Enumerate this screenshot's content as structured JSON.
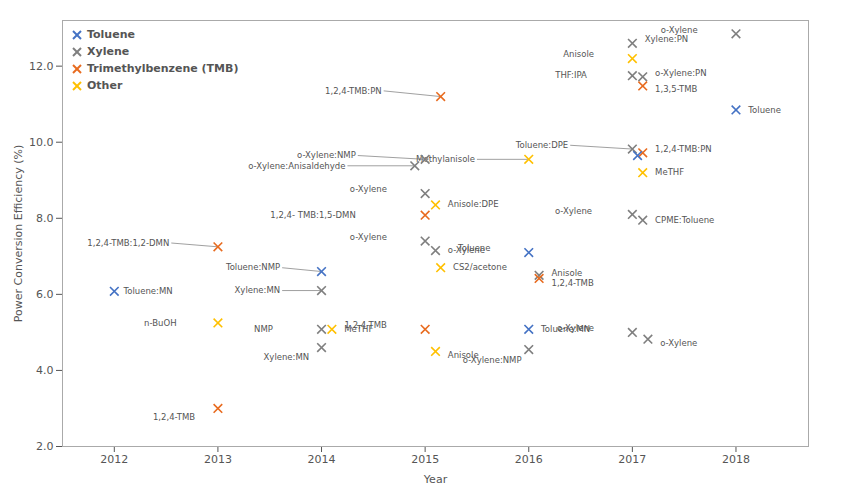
{
  "chart_data": {
    "type": "scatter",
    "xlabel": "Year",
    "ylabel": "Power Conversion Efficiency (%)",
    "xlim": [
      2011.5,
      2018.7
    ],
    "ylim": [
      2.0,
      13.2
    ],
    "xticks": [
      2012,
      2013,
      2014,
      2015,
      2016,
      2017,
      2018
    ],
    "yticks": [
      {
        "value": 2.0,
        "label": "2.0"
      },
      {
        "value": 4.0,
        "label": "4.0"
      },
      {
        "value": 6.0,
        "label": "6.0"
      },
      {
        "value": 8.0,
        "label": "8.0"
      },
      {
        "value": 10.0,
        "label": "10.0"
      },
      {
        "value": 12.0,
        "label": "12.0"
      }
    ],
    "grid": false,
    "legend": "upper left",
    "marker": "x",
    "series": [
      {
        "name": "Toluene",
        "color": "#4472C4"
      },
      {
        "name": "Xylene",
        "color": "#7F7F7F"
      },
      {
        "name": "Trimethylbenzene (TMB)",
        "color": "#E86B1F"
      },
      {
        "name": "Other",
        "color": "#FFC000"
      }
    ],
    "points": [
      {
        "x": 2012.0,
        "y": 6.08,
        "series": "Toluene",
        "label": "Toluene:MN",
        "label_x": 2012.07,
        "label_y": 6.08,
        "arrow": false
      },
      {
        "x": 2013.0,
        "y": 7.25,
        "series": "Trimethylbenzene (TMB)",
        "label": "1,2,4-TMB:1,2-DMN",
        "label_x": 2012.55,
        "label_y": 7.35,
        "arrow": true
      },
      {
        "x": 2013.0,
        "y": 5.25,
        "series": "Other",
        "label": "n-BuOH",
        "label_x": 2012.62,
        "label_y": 5.25,
        "arrow": false
      },
      {
        "x": 2013.0,
        "y": 3.0,
        "series": "Trimethylbenzene (TMB)",
        "label": "1,2,4-TMB",
        "label_x": 2012.8,
        "label_y": 2.78,
        "arrow": false
      },
      {
        "x": 2014.0,
        "y": 6.1,
        "series": "Xylene",
        "label": "Xylene:MN",
        "label_x": 2013.62,
        "label_y": 6.1,
        "arrow": true
      },
      {
        "x": 2014.0,
        "y": 6.6,
        "series": "Toluene",
        "label": "Toluene:NMP",
        "label_x": 2013.62,
        "label_y": 6.7,
        "arrow": true
      },
      {
        "x": 2014.0,
        "y": 5.08,
        "series": "Xylene",
        "label": "NMP",
        "label_x": 2013.55,
        "label_y": 5.08,
        "arrow": false
      },
      {
        "x": 2014.1,
        "y": 5.08,
        "series": "Other",
        "label": "MeTHF",
        "label_x": 2014.2,
        "label_y": 5.08,
        "arrow": false
      },
      {
        "x": 2014.0,
        "y": 4.6,
        "series": "Xylene",
        "label": "Xylene:MN",
        "label_x": 2013.9,
        "label_y": 4.35,
        "arrow": false
      },
      {
        "x": 2015.0,
        "y": 9.55,
        "series": "Xylene",
        "label": "o-Xylene:NMP",
        "label_x": 2014.35,
        "label_y": 9.65,
        "arrow": true
      },
      {
        "x": 2014.9,
        "y": 9.38,
        "series": "Xylene",
        "label": "o-Xylene:Anisaldehyde",
        "label_x": 2014.25,
        "label_y": 9.38,
        "arrow": true
      },
      {
        "x": 2015.0,
        "y": 8.65,
        "series": "Xylene",
        "label": "o-Xylene",
        "label_x": 2014.65,
        "label_y": 8.75,
        "arrow": false
      },
      {
        "x": 2015.0,
        "y": 8.08,
        "series": "Trimethylbenzene (TMB)",
        "label": "1,2,4- TMB:1,5-DMN",
        "label_x": 2014.35,
        "label_y": 8.08,
        "arrow": false
      },
      {
        "x": 2015.1,
        "y": 8.35,
        "series": "Other",
        "label": "Anisole:DPE",
        "label_x": 2015.2,
        "label_y": 8.38,
        "arrow": false
      },
      {
        "x": 2015.0,
        "y": 7.4,
        "series": "Xylene",
        "label": "o-Xylene",
        "label_x": 2014.65,
        "label_y": 7.5,
        "arrow": false
      },
      {
        "x": 2015.1,
        "y": 7.15,
        "series": "Xylene",
        "label": "o-Xylene",
        "label_x": 2015.2,
        "label_y": 7.15,
        "arrow": false
      },
      {
        "x": 2015.15,
        "y": 6.7,
        "series": "Other",
        "label": "CS2/acetone",
        "label_x": 2015.25,
        "label_y": 6.7,
        "arrow": false
      },
      {
        "x": 2015.0,
        "y": 5.08,
        "series": "Trimethylbenzene (TMB)",
        "label": "1,2,4-TMB",
        "label_x": 2014.65,
        "label_y": 5.18,
        "arrow": false
      },
      {
        "x": 2015.1,
        "y": 4.5,
        "series": "Other",
        "label": "Anisole",
        "label_x": 2015.2,
        "label_y": 4.4,
        "arrow": false
      },
      {
        "x": 2015.15,
        "y": 11.2,
        "series": "Trimethylbenzene (TMB)",
        "label": "1,2,4-TMB:PN",
        "label_x": 2014.6,
        "label_y": 11.35,
        "arrow": true
      },
      {
        "x": 2016.0,
        "y": 9.55,
        "series": "Other",
        "label": "Methylanisole",
        "label_x": 2015.5,
        "label_y": 9.55,
        "arrow": true
      },
      {
        "x": 2016.0,
        "y": 7.1,
        "series": "Toluene",
        "label": "Toluene",
        "label_x": 2015.65,
        "label_y": 7.2,
        "arrow": false
      },
      {
        "x": 2016.1,
        "y": 6.5,
        "series": "Xylene",
        "label": "Anisole",
        "label_x": 2016.2,
        "label_y": 6.55,
        "arrow": false
      },
      {
        "x": 2016.1,
        "y": 6.42,
        "series": "Trimethylbenzene (TMB)",
        "label": "1,2,4-TMB",
        "label_x": 2016.2,
        "label_y": 6.28,
        "arrow": false
      },
      {
        "x": 2016.0,
        "y": 5.08,
        "series": "Toluene",
        "label": "Toluene:MN",
        "label_x": 2016.1,
        "label_y": 5.08,
        "arrow": false
      },
      {
        "x": 2016.0,
        "y": 4.55,
        "series": "Xylene",
        "label": "o-Xylene:NMP",
        "label_x": 2015.95,
        "label_y": 4.28,
        "arrow": false
      },
      {
        "x": 2017.0,
        "y": 12.6,
        "series": "Xylene",
        "label": "Xylene:PN",
        "label_x": 2017.1,
        "label_y": 12.7,
        "arrow": false
      },
      {
        "x": 2017.0,
        "y": 12.2,
        "series": "Other",
        "label": "Anisole",
        "label_x": 2016.65,
        "label_y": 12.3,
        "arrow": false
      },
      {
        "x": 2017.0,
        "y": 11.75,
        "series": "Xylene",
        "label": "THF:IPA",
        "label_x": 2016.58,
        "label_y": 11.75,
        "arrow": false
      },
      {
        "x": 2017.1,
        "y": 11.72,
        "series": "Xylene",
        "label": "o-Xylene:PN",
        "label_x": 2017.2,
        "label_y": 11.8,
        "arrow": false
      },
      {
        "x": 2017.1,
        "y": 11.48,
        "series": "Trimethylbenzene (TMB)",
        "label": "1,3,5-TMB",
        "label_x": 2017.2,
        "label_y": 11.38,
        "arrow": false
      },
      {
        "x": 2017.0,
        "y": 9.82,
        "series": "Xylene",
        "label": "Toluene:DPE",
        "label_x": 2016.4,
        "label_y": 9.92,
        "arrow": true
      },
      {
        "x": 2017.1,
        "y": 9.72,
        "series": "Trimethylbenzene (TMB)",
        "label": "1,2,4-TMB:PN",
        "label_x": 2017.2,
        "label_y": 9.82,
        "arrow": false
      },
      {
        "x": 2017.05,
        "y": 9.65,
        "series": "Toluene"
      },
      {
        "x": 2017.1,
        "y": 9.2,
        "series": "Other",
        "label": "MeTHF",
        "label_x": 2017.2,
        "label_y": 9.2,
        "arrow": false
      },
      {
        "x": 2017.0,
        "y": 8.1,
        "series": "Xylene",
        "label": "o-Xylene",
        "label_x": 2016.63,
        "label_y": 8.18,
        "arrow": false
      },
      {
        "x": 2017.1,
        "y": 7.95,
        "series": "Xylene",
        "label": "CPME:Toluene",
        "label_x": 2017.2,
        "label_y": 7.95,
        "arrow": false
      },
      {
        "x": 2017.0,
        "y": 5.0,
        "series": "Xylene",
        "label": "o-Xylene",
        "label_x": 2016.65,
        "label_y": 5.1,
        "arrow": false
      },
      {
        "x": 2017.15,
        "y": 4.82,
        "series": "Xylene",
        "label": "o-Xylene",
        "label_x": 2017.25,
        "label_y": 4.72,
        "arrow": false
      },
      {
        "x": 2018.0,
        "y": 12.85,
        "series": "Xylene",
        "label": "o-Xylene",
        "label_x": 2017.65,
        "label_y": 12.95,
        "arrow": false
      },
      {
        "x": 2018.0,
        "y": 10.85,
        "series": "Toluene",
        "label": "Toluene",
        "label_x": 2018.1,
        "label_y": 10.85,
        "arrow": false
      }
    ]
  }
}
